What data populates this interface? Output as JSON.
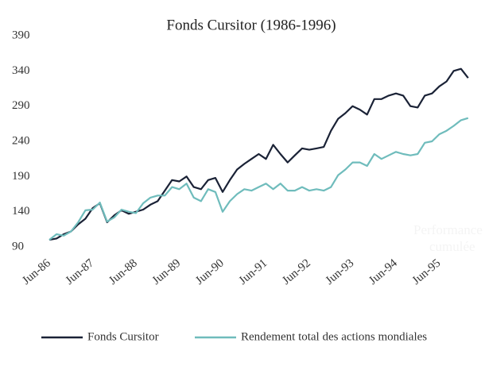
{
  "chart_data": {
    "type": "line",
    "title": "Fonds Cursitor (1986-1996)",
    "categories": [
      "Jun-86",
      null,
      null,
      null,
      null,
      null,
      "Jun-87",
      null,
      null,
      null,
      null,
      null,
      "Jun-88",
      null,
      null,
      null,
      null,
      null,
      "Jun-89",
      null,
      null,
      null,
      null,
      null,
      "Jun-90",
      null,
      null,
      null,
      null,
      null,
      "Jun-91",
      null,
      null,
      null,
      null,
      null,
      "Jun-92",
      null,
      null,
      null,
      null,
      null,
      "Jun-93",
      null,
      null,
      null,
      null,
      null,
      "Jun-94",
      null,
      null,
      null,
      null,
      null,
      "Jun-95",
      null,
      null,
      null,
      null
    ],
    "series": [
      {
        "name": "Fonds Cursitor",
        "color": "#1a2236",
        "values": [
          100,
          102,
          108,
          112,
          122,
          130,
          145,
          152,
          125,
          135,
          142,
          137,
          140,
          143,
          150,
          155,
          170,
          185,
          183,
          190,
          175,
          172,
          185,
          188,
          168,
          185,
          200,
          208,
          215,
          222,
          215,
          235,
          222,
          210,
          220,
          230,
          228,
          230,
          232,
          255,
          272,
          280,
          290,
          285,
          278,
          300,
          300,
          305,
          308,
          305,
          290,
          288,
          305,
          308,
          318,
          325,
          340,
          343,
          330
        ]
      },
      {
        "name": "Rendement total des actions mondiales",
        "color": "#6fbcbc",
        "values": [
          100,
          108,
          106,
          112,
          125,
          142,
          143,
          153,
          126,
          132,
          143,
          140,
          138,
          152,
          160,
          163,
          163,
          175,
          172,
          180,
          160,
          155,
          172,
          168,
          140,
          155,
          165,
          172,
          170,
          175,
          180,
          172,
          180,
          170,
          170,
          175,
          170,
          172,
          170,
          175,
          192,
          200,
          210,
          210,
          205,
          222,
          215,
          220,
          225,
          222,
          220,
          222,
          238,
          240,
          250,
          255,
          262,
          270,
          273
        ]
      }
    ],
    "ylim": [
      90,
      390
    ],
    "yticks": [
      90,
      140,
      190,
      240,
      290,
      340,
      390
    ],
    "annotations": [
      "Performance",
      "cumulée"
    ],
    "grid": false,
    "legend": "bottom"
  }
}
